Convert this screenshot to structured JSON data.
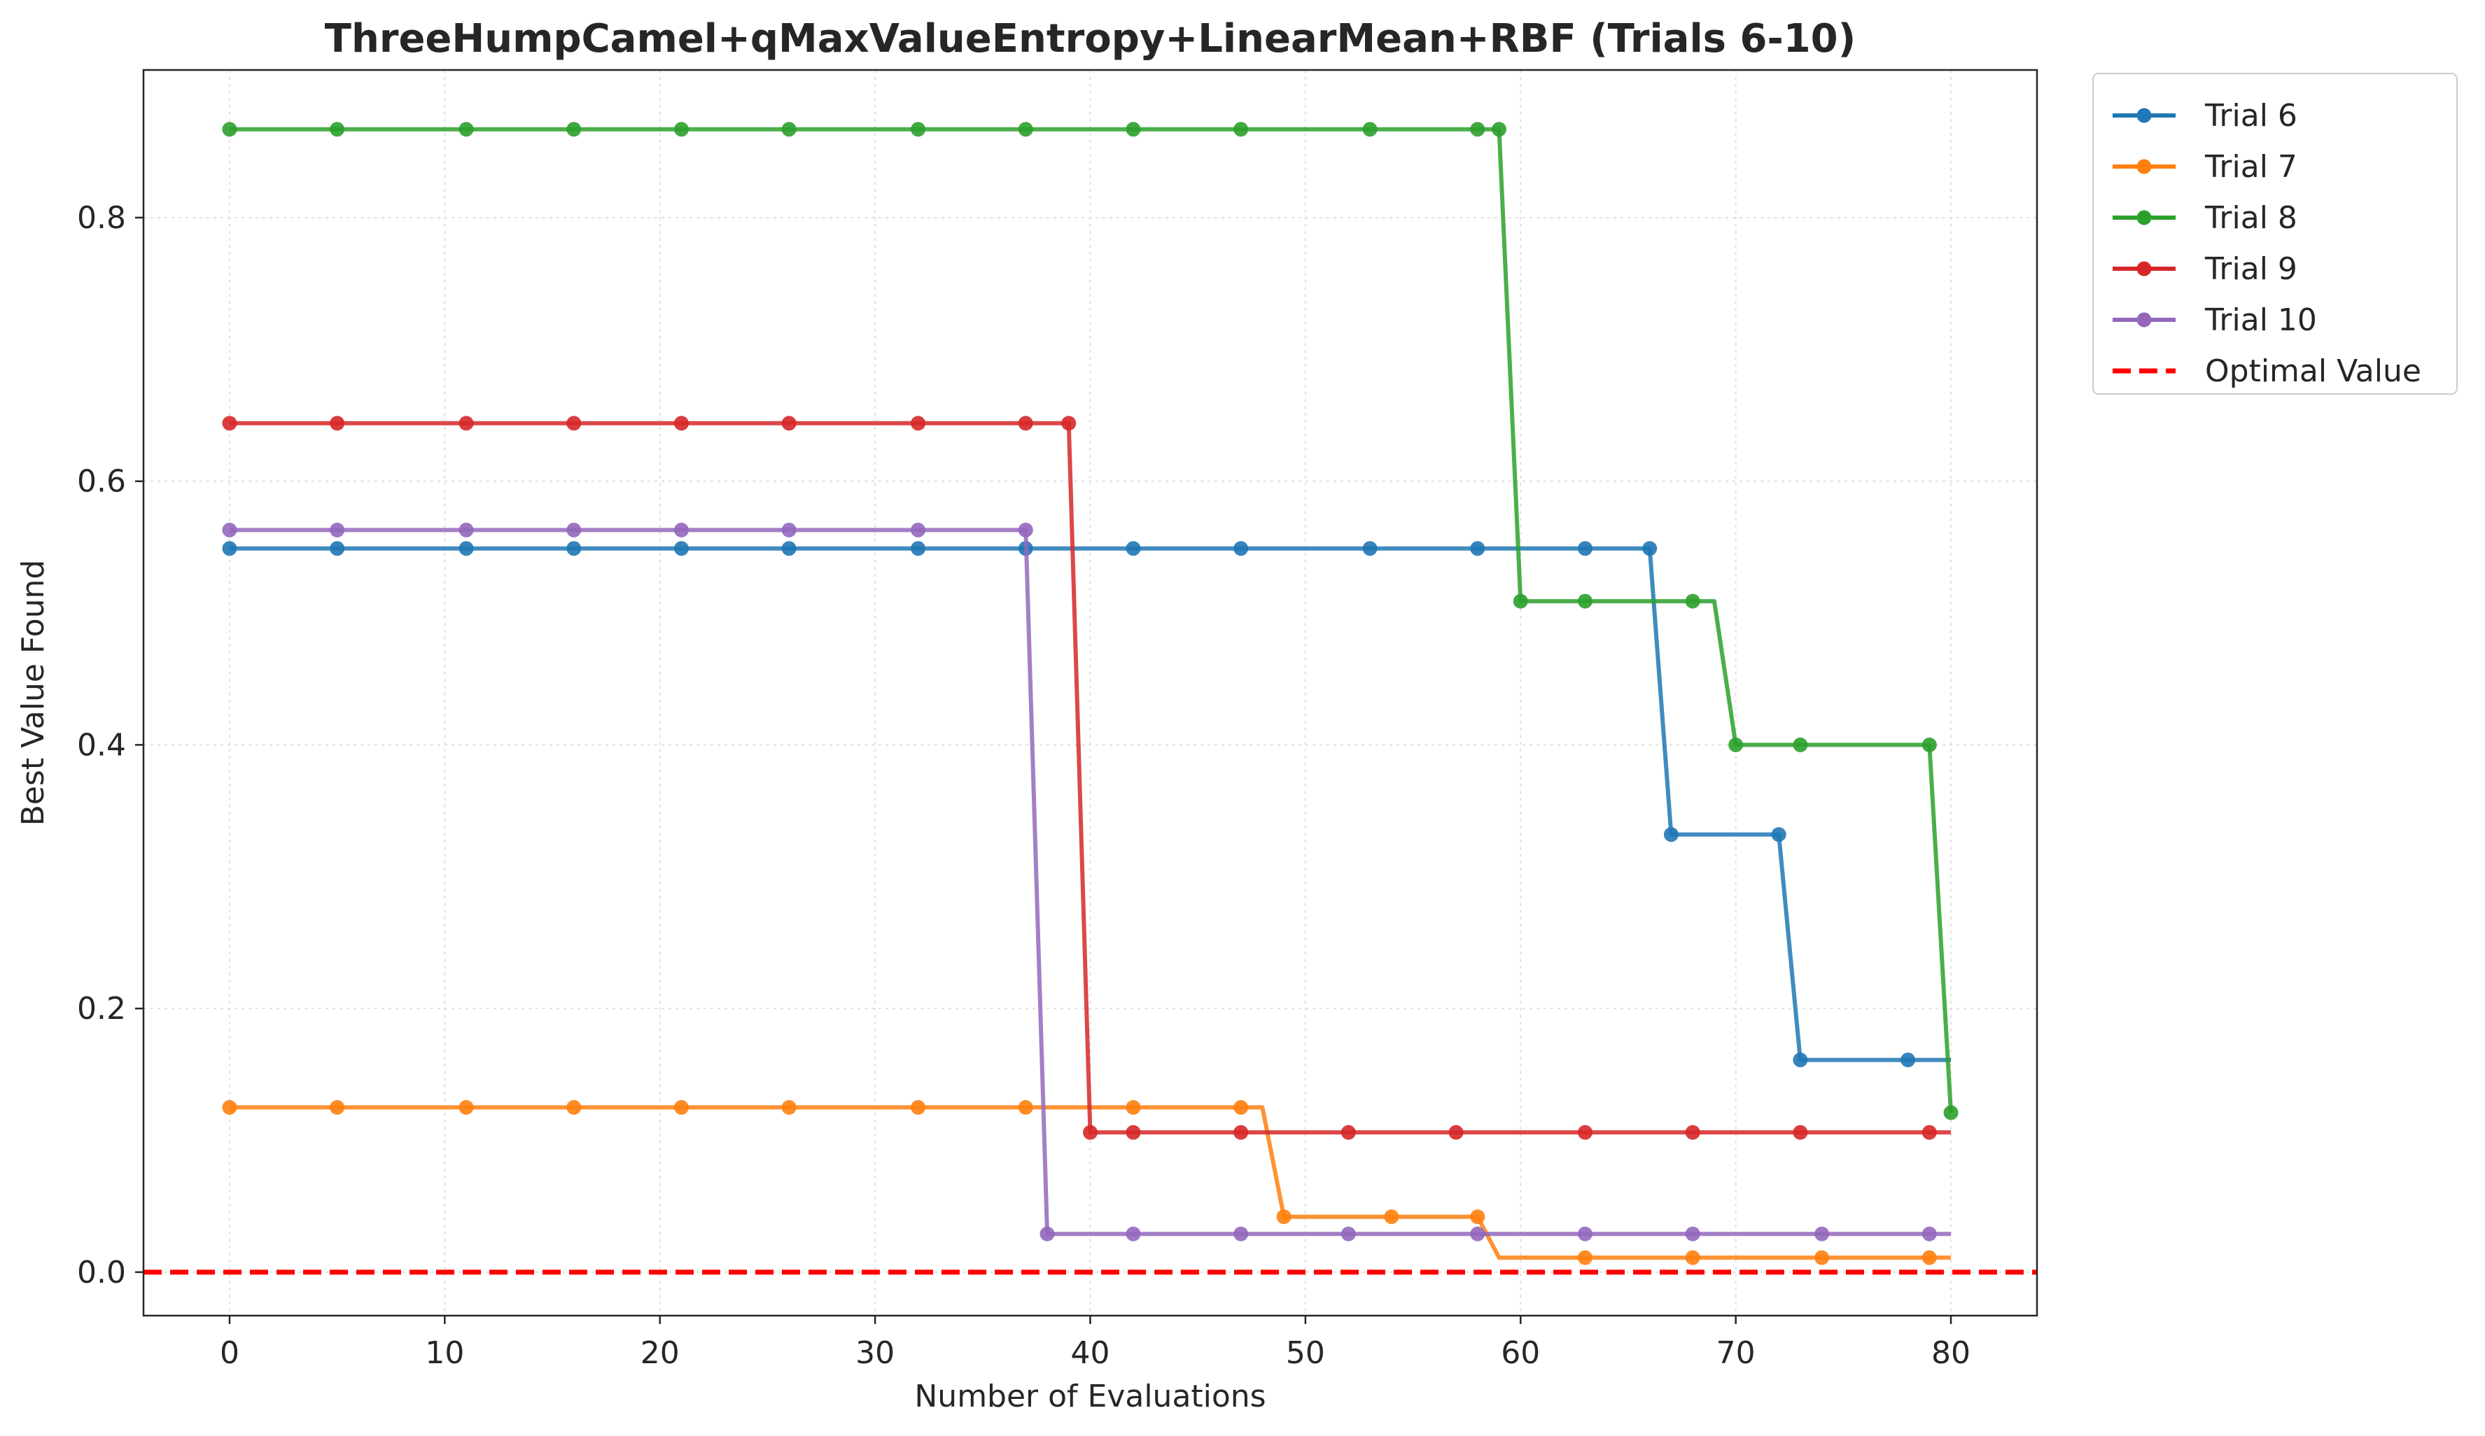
{
  "chart_data": {
    "type": "line",
    "title": "ThreeHumpCamel+qMaxValueEntropy+LinearMean+RBF (Trials 6-10)",
    "xlabel": "Number of Evaluations",
    "ylabel": "Best Value Found",
    "xlim": [
      -4,
      84
    ],
    "ylim": [
      -0.033,
      0.912
    ],
    "xticks": [
      0,
      10,
      20,
      30,
      40,
      50,
      60,
      70,
      80
    ],
    "yticks": [
      0.0,
      0.2,
      0.4,
      0.6,
      0.8
    ],
    "xtick_labels": [
      "0",
      "10",
      "20",
      "30",
      "40",
      "50",
      "60",
      "70",
      "80"
    ],
    "ytick_labels": [
      "0.0",
      "0.2",
      "0.4",
      "0.6",
      "0.8"
    ],
    "grid": true,
    "legend_position": "outside upper right",
    "series": [
      {
        "name": "Trial 6",
        "color": "#1f77b4",
        "x_start": 0,
        "x_end": 80,
        "steps": [
          [
            0,
            0.549
          ],
          [
            67,
            0.332
          ],
          [
            73,
            0.161
          ]
        ],
        "markers": [
          [
            0,
            0.549
          ],
          [
            5,
            0.549
          ],
          [
            11,
            0.549
          ],
          [
            16,
            0.549
          ],
          [
            21,
            0.549
          ],
          [
            26,
            0.549
          ],
          [
            32,
            0.549
          ],
          [
            37,
            0.549
          ],
          [
            42,
            0.549
          ],
          [
            47,
            0.549
          ],
          [
            53,
            0.549
          ],
          [
            58,
            0.549
          ],
          [
            63,
            0.549
          ],
          [
            66,
            0.549
          ],
          [
            67,
            0.332
          ],
          [
            72,
            0.332
          ],
          [
            73,
            0.161
          ],
          [
            78,
            0.161
          ]
        ]
      },
      {
        "name": "Trial 7",
        "color": "#ff7f0e",
        "x_start": 0,
        "x_end": 80,
        "steps": [
          [
            0,
            0.125
          ],
          [
            49,
            0.042
          ],
          [
            59,
            0.011
          ]
        ],
        "markers": [
          [
            0,
            0.125
          ],
          [
            5,
            0.125
          ],
          [
            11,
            0.125
          ],
          [
            16,
            0.125
          ],
          [
            21,
            0.125
          ],
          [
            26,
            0.125
          ],
          [
            32,
            0.125
          ],
          [
            37,
            0.125
          ],
          [
            42,
            0.125
          ],
          [
            47,
            0.125
          ],
          [
            49,
            0.042
          ],
          [
            54,
            0.042
          ],
          [
            58,
            0.042
          ],
          [
            63,
            0.011
          ],
          [
            68,
            0.011
          ],
          [
            74,
            0.011
          ],
          [
            79,
            0.011
          ]
        ]
      },
      {
        "name": "Trial 8",
        "color": "#2ca02c",
        "x_start": 0,
        "x_end": 80,
        "steps": [
          [
            0,
            0.867
          ],
          [
            60,
            0.509
          ],
          [
            70,
            0.4
          ],
          [
            80,
            0.121
          ]
        ],
        "markers": [
          [
            0,
            0.867
          ],
          [
            5,
            0.867
          ],
          [
            11,
            0.867
          ],
          [
            16,
            0.867
          ],
          [
            21,
            0.867
          ],
          [
            26,
            0.867
          ],
          [
            32,
            0.867
          ],
          [
            37,
            0.867
          ],
          [
            42,
            0.867
          ],
          [
            47,
            0.867
          ],
          [
            53,
            0.867
          ],
          [
            58,
            0.867
          ],
          [
            59,
            0.867
          ],
          [
            60,
            0.509
          ],
          [
            63,
            0.509
          ],
          [
            68,
            0.509
          ],
          [
            70,
            0.4
          ],
          [
            73,
            0.4
          ],
          [
            79,
            0.4
          ],
          [
            80,
            0.121
          ]
        ]
      },
      {
        "name": "Trial 9",
        "color": "#d62728",
        "x_start": 0,
        "x_end": 80,
        "steps": [
          [
            0,
            0.644
          ],
          [
            40,
            0.106
          ]
        ],
        "markers": [
          [
            0,
            0.644
          ],
          [
            5,
            0.644
          ],
          [
            11,
            0.644
          ],
          [
            16,
            0.644
          ],
          [
            21,
            0.644
          ],
          [
            26,
            0.644
          ],
          [
            32,
            0.644
          ],
          [
            37,
            0.644
          ],
          [
            39,
            0.644
          ],
          [
            40,
            0.106
          ],
          [
            42,
            0.106
          ],
          [
            47,
            0.106
          ],
          [
            52,
            0.106
          ],
          [
            57,
            0.106
          ],
          [
            63,
            0.106
          ],
          [
            68,
            0.106
          ],
          [
            73,
            0.106
          ],
          [
            79,
            0.106
          ]
        ]
      },
      {
        "name": "Trial 10",
        "color": "#9467bd",
        "x_start": 0,
        "x_end": 80,
        "steps": [
          [
            0,
            0.563
          ],
          [
            38,
            0.029
          ]
        ],
        "markers": [
          [
            0,
            0.563
          ],
          [
            5,
            0.563
          ],
          [
            11,
            0.563
          ],
          [
            16,
            0.563
          ],
          [
            21,
            0.563
          ],
          [
            26,
            0.563
          ],
          [
            32,
            0.563
          ],
          [
            37,
            0.563
          ],
          [
            38,
            0.029
          ],
          [
            42,
            0.029
          ],
          [
            47,
            0.029
          ],
          [
            52,
            0.029
          ],
          [
            58,
            0.029
          ],
          [
            63,
            0.029
          ],
          [
            68,
            0.029
          ],
          [
            74,
            0.029
          ],
          [
            79,
            0.029
          ]
        ]
      }
    ],
    "reference_line": {
      "name": "Optimal Value",
      "y": 0.0,
      "color": "#ff0000",
      "style": "dashed"
    }
  }
}
